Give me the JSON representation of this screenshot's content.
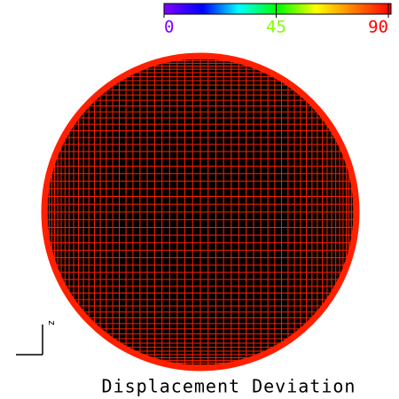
{
  "chart_data": {
    "type": "colormap",
    "title": "Displacement Deviation",
    "axis_label": "z",
    "clim": [
      0,
      90
    ],
    "cticks": [
      0,
      45,
      90
    ],
    "color": "#ff2000"
  }
}
